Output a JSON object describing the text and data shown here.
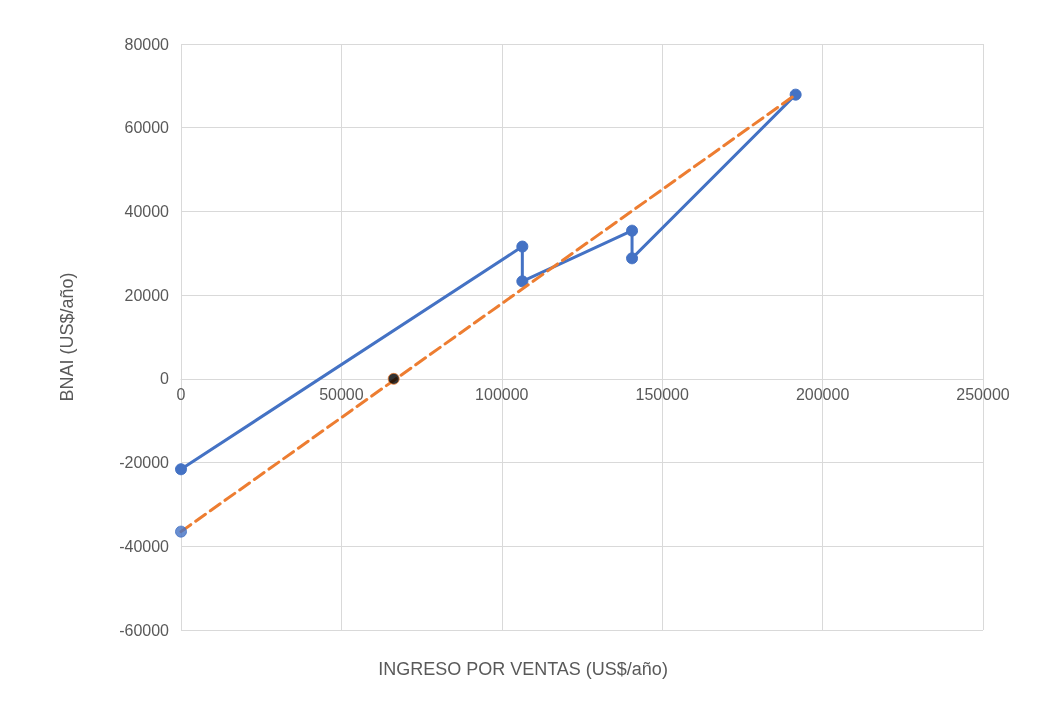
{
  "chart_data": {
    "type": "line",
    "xlabel": "INGRESO POR VENTAS (US$/año)",
    "ylabel": "BNAI (US$/año)",
    "xlim": [
      0,
      250000
    ],
    "xticks": [
      0,
      50000,
      100000,
      150000,
      200000,
      250000
    ],
    "ylim": [
      -60000,
      80000
    ],
    "yticks": [
      -60000,
      -40000,
      -20000,
      0,
      20000,
      40000,
      60000,
      80000
    ],
    "grid": true,
    "series": [
      {
        "color": "#4472c4",
        "marker": "circle",
        "line_style": "solid",
        "x": [
          0,
          106400,
          106400,
          140600,
          140600,
          191600
        ],
        "values": [
          -21600,
          31600,
          23300,
          35400,
          28800,
          67900
        ]
      },
      {
        "color": "#ed7d31",
        "marker": "none",
        "line_style": "dashed",
        "x": [
          0,
          191600
        ],
        "values": [
          -36500,
          67900
        ]
      },
      {
        "type": "scatter",
        "color": "#4472c4",
        "marker": "circle",
        "x": [
          0
        ],
        "values": [
          -36500
        ]
      },
      {
        "type": "scatter",
        "color": "#000000",
        "marker": "circle",
        "x": [
          66300
        ],
        "values": [
          0
        ]
      }
    ]
  }
}
